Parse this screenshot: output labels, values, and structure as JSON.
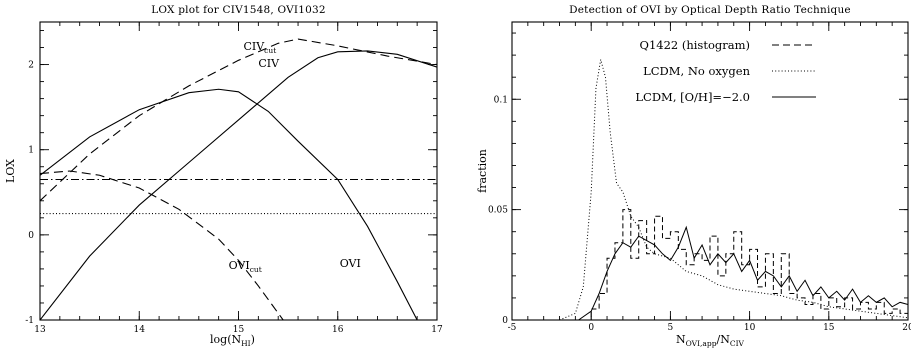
{
  "chart_data": [
    {
      "type": "line",
      "title": "LOX plot for CIV1548, OVI1032",
      "xlabel": "log(N",
      "xlabel_sub": "HI",
      "ylabel": "LOX",
      "xlim": [
        13,
        17
      ],
      "ylim": [
        -1,
        2.5
      ],
      "xticks": [
        13,
        14,
        15,
        16,
        17
      ],
      "yticks": [
        -1,
        0,
        1,
        2
      ],
      "series": [
        {
          "name": "CIV",
          "style": "solid",
          "x": [
            13,
            13.5,
            14,
            14.5,
            15,
            15.5,
            15.8,
            16,
            16.3,
            16.6,
            17
          ],
          "y": [
            -1,
            -0.25,
            0.35,
            0.85,
            1.35,
            1.85,
            2.08,
            2.15,
            2.16,
            2.12,
            1.97
          ]
        },
        {
          "name": "CIV_cut",
          "style": "dashed",
          "x": [
            13,
            13.5,
            14,
            14.5,
            15,
            15.4,
            15.6,
            16,
            16.5,
            17
          ],
          "y": [
            0.4,
            0.95,
            1.4,
            1.75,
            2.05,
            2.25,
            2.3,
            2.22,
            2.1,
            2.0
          ]
        },
        {
          "name": "OVI",
          "style": "solid",
          "x": [
            13,
            13.5,
            14,
            14.5,
            14.8,
            15,
            15.3,
            15.6,
            16,
            16.3,
            16.6,
            16.8
          ],
          "y": [
            0.7,
            1.15,
            1.47,
            1.67,
            1.71,
            1.68,
            1.45,
            1.1,
            0.65,
            0.1,
            -0.55,
            -1
          ]
        },
        {
          "name": "OVI_cut",
          "style": "dashed",
          "x": [
            13,
            13.3,
            13.6,
            14,
            14.4,
            14.8,
            15,
            15.2,
            15.45
          ],
          "y": [
            0.72,
            0.75,
            0.7,
            0.55,
            0.3,
            -0.05,
            -0.3,
            -0.6,
            -1
          ]
        },
        {
          "name": "",
          "style": "dashdot",
          "x": [
            13,
            17
          ],
          "y": [
            0.65,
            0.65
          ]
        },
        {
          "name": "",
          "style": "dotted",
          "x": [
            13,
            17
          ],
          "y": [
            0.25,
            0.25
          ]
        }
      ],
      "annotations": [
        {
          "text": "CIV",
          "sub": "cut",
          "x": 15.05,
          "y": 2.17
        },
        {
          "text": "CIV",
          "sub": "",
          "x": 15.2,
          "y": 1.97
        },
        {
          "text": "OVI",
          "sub": "cut",
          "x": 14.9,
          "y": -0.4
        },
        {
          "text": "OVI",
          "sub": "",
          "x": 16.02,
          "y": -0.38
        }
      ]
    },
    {
      "type": "line",
      "title": "Detection of OVI by Optical Depth Ratio Technique",
      "xlabel": "N",
      "xlabel_sub": "OVI,app",
      "xlabel_mid": "/N",
      "xlabel_sub2": "CIV",
      "ylabel": "fraction",
      "xlim": [
        -5,
        20
      ],
      "ylim": [
        0,
        0.135
      ],
      "xticks": [
        -5,
        0,
        5,
        10,
        15,
        20
      ],
      "yticks": [
        0,
        0.05,
        0.1
      ],
      "legend": [
        {
          "label": "Q1422 (histogram)",
          "style": "dashed"
        },
        {
          "label": "LCDM, No oxygen",
          "style": "dotted"
        },
        {
          "label": "LCDM, [O/H]=−2.0",
          "style": "solid"
        }
      ],
      "series": [
        {
          "name": "Q1422 (histogram)",
          "style": "dashed-step",
          "x": [
            -0.3,
            0,
            0.5,
            1,
            1.5,
            2,
            2.5,
            3,
            3.5,
            4,
            4.5,
            5,
            5.5,
            6,
            6.5,
            7,
            7.5,
            8,
            8.5,
            9,
            9.5,
            10,
            10.5,
            11,
            11.5,
            12,
            12.5,
            13,
            13.5,
            14,
            14.5,
            15,
            15.5,
            16,
            16.5,
            17,
            17.5,
            18,
            18.5,
            19,
            19.5,
            20
          ],
          "y": [
            0,
            0.005,
            0.012,
            0.028,
            0.035,
            0.05,
            0.028,
            0.045,
            0.03,
            0.047,
            0.037,
            0.04,
            0.032,
            0.025,
            0.03,
            0.027,
            0.038,
            0.02,
            0.03,
            0.04,
            0.025,
            0.032,
            0.015,
            0.03,
            0.012,
            0.03,
            0.012,
            0.01,
            0.007,
            0.012,
            0.005,
            0.01,
            0.006,
            0.01,
            0.005,
            0.008,
            0.005,
            0.008,
            0.003,
            0.005,
            0.003,
            0.003
          ]
        },
        {
          "name": "LCDM, No oxygen",
          "style": "dotted",
          "x": [
            -2,
            -1,
            -0.5,
            0,
            0.3,
            0.6,
            0.9,
            1.2,
            1.6,
            2,
            2.5,
            3,
            3.5,
            4,
            5,
            6,
            7,
            8,
            9,
            10,
            11,
            12,
            13,
            14,
            15,
            16,
            17,
            18,
            19,
            20
          ],
          "y": [
            0,
            0.003,
            0.015,
            0.058,
            0.105,
            0.118,
            0.11,
            0.085,
            0.062,
            0.058,
            0.047,
            0.042,
            0.033,
            0.03,
            0.028,
            0.022,
            0.02,
            0.016,
            0.014,
            0.013,
            0.012,
            0.011,
            0.009,
            0.008,
            0.006,
            0.005,
            0.004,
            0.003,
            0.002,
            0.001
          ]
        },
        {
          "name": "LCDM, [O/H]=−2.0",
          "style": "solid",
          "x": [
            -0.8,
            0,
            0.5,
            1,
            1.5,
            2,
            2.5,
            3,
            3.5,
            4,
            4.5,
            5,
            5.5,
            6,
            6.5,
            7,
            7.5,
            8,
            8.5,
            9,
            9.5,
            10,
            10.5,
            11,
            11.5,
            12,
            12.5,
            13,
            13.5,
            14,
            14.5,
            15,
            15.5,
            16,
            16.5,
            17,
            17.5,
            18,
            18.5,
            19,
            19.5,
            20
          ],
          "y": [
            0,
            0.004,
            0.012,
            0.022,
            0.03,
            0.035,
            0.033,
            0.038,
            0.036,
            0.034,
            0.03,
            0.027,
            0.033,
            0.042,
            0.028,
            0.034,
            0.025,
            0.03,
            0.026,
            0.03,
            0.022,
            0.027,
            0.018,
            0.022,
            0.02,
            0.015,
            0.02,
            0.013,
            0.018,
            0.011,
            0.015,
            0.01,
            0.013,
            0.009,
            0.014,
            0.008,
            0.011,
            0.008,
            0.01,
            0.006,
            0.008,
            0.007
          ]
        }
      ]
    }
  ]
}
